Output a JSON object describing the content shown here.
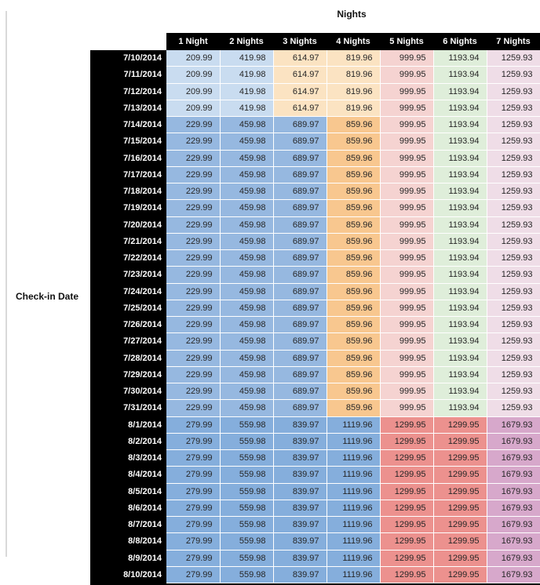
{
  "title": "Nights",
  "row_axis_label": "Check-in Date",
  "style": {
    "header_bg": "#000000",
    "header_text": "#FFFFFF",
    "value_text": "#262626",
    "rule_color": "#D9D9D9",
    "palette": {
      "light_blue": "#C9DCF0",
      "mid_blue": "#96B8E0",
      "dark_blue": "#85AEDC",
      "light_orange": "#FBE3C2",
      "mid_orange": "#F8C78F",
      "light_red": "#F5D3D1",
      "mid_red": "#EC918E",
      "light_green": "#DFEEDA",
      "light_pink": "#EFDDE7",
      "mid_pink": "#D7A8CB"
    },
    "bands": {
      "jul_early": [
        "light_blue",
        "light_blue",
        "light_orange",
        "light_orange",
        "light_red",
        "light_green",
        "light_pink"
      ],
      "jul_mid": [
        "mid_blue",
        "mid_blue",
        "mid_blue",
        "mid_orange",
        "light_red",
        "light_green",
        "light_pink"
      ],
      "aug": [
        "dark_blue",
        "dark_blue",
        "dark_blue",
        "dark_blue",
        "mid_red",
        "mid_red",
        "mid_pink"
      ]
    }
  },
  "chart_data": {
    "type": "table",
    "title": "Nights",
    "row_axis_label": "Check-in Date",
    "columns": [
      "1 Night",
      "2 Nights",
      "3 Nights",
      "4 Nights",
      "5 Nights",
      "6 Nights",
      "7 Nights"
    ],
    "rows": [
      {
        "date": "7/10/2014",
        "band": "jul_early",
        "values": [
          209.99,
          419.98,
          614.97,
          819.96,
          999.95,
          1193.94,
          1259.93
        ]
      },
      {
        "date": "7/11/2014",
        "band": "jul_early",
        "values": [
          209.99,
          419.98,
          614.97,
          819.96,
          999.95,
          1193.94,
          1259.93
        ]
      },
      {
        "date": "7/12/2014",
        "band": "jul_early",
        "values": [
          209.99,
          419.98,
          614.97,
          819.96,
          999.95,
          1193.94,
          1259.93
        ]
      },
      {
        "date": "7/13/2014",
        "band": "jul_early",
        "values": [
          209.99,
          419.98,
          614.97,
          819.96,
          999.95,
          1193.94,
          1259.93
        ]
      },
      {
        "date": "7/14/2014",
        "band": "jul_mid",
        "values": [
          229.99,
          459.98,
          689.97,
          859.96,
          999.95,
          1193.94,
          1259.93
        ]
      },
      {
        "date": "7/15/2014",
        "band": "jul_mid",
        "values": [
          229.99,
          459.98,
          689.97,
          859.96,
          999.95,
          1193.94,
          1259.93
        ]
      },
      {
        "date": "7/16/2014",
        "band": "jul_mid",
        "values": [
          229.99,
          459.98,
          689.97,
          859.96,
          999.95,
          1193.94,
          1259.93
        ]
      },
      {
        "date": "7/17/2014",
        "band": "jul_mid",
        "values": [
          229.99,
          459.98,
          689.97,
          859.96,
          999.95,
          1193.94,
          1259.93
        ]
      },
      {
        "date": "7/18/2014",
        "band": "jul_mid",
        "values": [
          229.99,
          459.98,
          689.97,
          859.96,
          999.95,
          1193.94,
          1259.93
        ]
      },
      {
        "date": "7/19/2014",
        "band": "jul_mid",
        "values": [
          229.99,
          459.98,
          689.97,
          859.96,
          999.95,
          1193.94,
          1259.93
        ]
      },
      {
        "date": "7/20/2014",
        "band": "jul_mid",
        "values": [
          229.99,
          459.98,
          689.97,
          859.96,
          999.95,
          1193.94,
          1259.93
        ]
      },
      {
        "date": "7/21/2014",
        "band": "jul_mid",
        "values": [
          229.99,
          459.98,
          689.97,
          859.96,
          999.95,
          1193.94,
          1259.93
        ]
      },
      {
        "date": "7/22/2014",
        "band": "jul_mid",
        "values": [
          229.99,
          459.98,
          689.97,
          859.96,
          999.95,
          1193.94,
          1259.93
        ]
      },
      {
        "date": "7/23/2014",
        "band": "jul_mid",
        "values": [
          229.99,
          459.98,
          689.97,
          859.96,
          999.95,
          1193.94,
          1259.93
        ]
      },
      {
        "date": "7/24/2014",
        "band": "jul_mid",
        "values": [
          229.99,
          459.98,
          689.97,
          859.96,
          999.95,
          1193.94,
          1259.93
        ]
      },
      {
        "date": "7/25/2014",
        "band": "jul_mid",
        "values": [
          229.99,
          459.98,
          689.97,
          859.96,
          999.95,
          1193.94,
          1259.93
        ]
      },
      {
        "date": "7/26/2014",
        "band": "jul_mid",
        "values": [
          229.99,
          459.98,
          689.97,
          859.96,
          999.95,
          1193.94,
          1259.93
        ]
      },
      {
        "date": "7/27/2014",
        "band": "jul_mid",
        "values": [
          229.99,
          459.98,
          689.97,
          859.96,
          999.95,
          1193.94,
          1259.93
        ]
      },
      {
        "date": "7/28/2014",
        "band": "jul_mid",
        "values": [
          229.99,
          459.98,
          689.97,
          859.96,
          999.95,
          1193.94,
          1259.93
        ]
      },
      {
        "date": "7/29/2014",
        "band": "jul_mid",
        "values": [
          229.99,
          459.98,
          689.97,
          859.96,
          999.95,
          1193.94,
          1259.93
        ]
      },
      {
        "date": "7/30/2014",
        "band": "jul_mid",
        "values": [
          229.99,
          459.98,
          689.97,
          859.96,
          999.95,
          1193.94,
          1259.93
        ]
      },
      {
        "date": "7/31/2014",
        "band": "jul_mid",
        "values": [
          229.99,
          459.98,
          689.97,
          859.96,
          999.95,
          1193.94,
          1259.93
        ]
      },
      {
        "date": "8/1/2014",
        "band": "aug",
        "values": [
          279.99,
          559.98,
          839.97,
          1119.96,
          1299.95,
          1299.95,
          1679.93
        ]
      },
      {
        "date": "8/2/2014",
        "band": "aug",
        "values": [
          279.99,
          559.98,
          839.97,
          1119.96,
          1299.95,
          1299.95,
          1679.93
        ]
      },
      {
        "date": "8/3/2014",
        "band": "aug",
        "values": [
          279.99,
          559.98,
          839.97,
          1119.96,
          1299.95,
          1299.95,
          1679.93
        ]
      },
      {
        "date": "8/4/2014",
        "band": "aug",
        "values": [
          279.99,
          559.98,
          839.97,
          1119.96,
          1299.95,
          1299.95,
          1679.93
        ]
      },
      {
        "date": "8/5/2014",
        "band": "aug",
        "values": [
          279.99,
          559.98,
          839.97,
          1119.96,
          1299.95,
          1299.95,
          1679.93
        ]
      },
      {
        "date": "8/6/2014",
        "band": "aug",
        "values": [
          279.99,
          559.98,
          839.97,
          1119.96,
          1299.95,
          1299.95,
          1679.93
        ]
      },
      {
        "date": "8/7/2014",
        "band": "aug",
        "values": [
          279.99,
          559.98,
          839.97,
          1119.96,
          1299.95,
          1299.95,
          1679.93
        ]
      },
      {
        "date": "8/8/2014",
        "band": "aug",
        "values": [
          279.99,
          559.98,
          839.97,
          1119.96,
          1299.95,
          1299.95,
          1679.93
        ]
      },
      {
        "date": "8/9/2014",
        "band": "aug",
        "values": [
          279.99,
          559.98,
          839.97,
          1119.96,
          1299.95,
          1299.95,
          1679.93
        ]
      },
      {
        "date": "8/10/2014",
        "band": "aug",
        "values": [
          279.99,
          559.98,
          839.97,
          1119.96,
          1299.95,
          1299.95,
          1679.93
        ]
      }
    ]
  }
}
